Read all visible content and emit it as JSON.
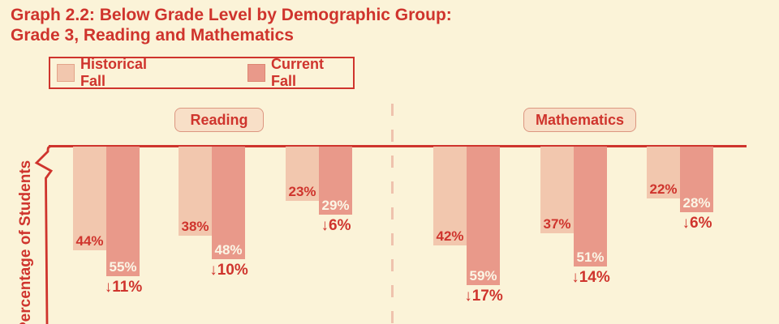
{
  "title": {
    "line1": "Graph 2.2: Below Grade Level by Demographic Group:",
    "line2": "Grade 3, Reading and Mathematics"
  },
  "legend": {
    "items": [
      {
        "label": "Historical Fall",
        "color": "#F2C7AE"
      },
      {
        "label": "Current Fall",
        "color": "#E9998A"
      }
    ]
  },
  "colors": {
    "background": "#FBF3D8",
    "accent_red": "#CF342D",
    "historical_bar": "#F2C7AE",
    "current_bar": "#E9998A",
    "section_box_bg": "#F8DFC7",
    "section_box_border": "#DC9680",
    "dashed_divider": "#EFC2AD",
    "current_label_text": "#FBF6E6"
  },
  "chart_data": {
    "type": "bar",
    "title": "Graph 2.2: Below Grade Level by Demographic Group: Grade 3, Reading and Mathematics",
    "ylabel": "Percentage of Students",
    "unit": "percent",
    "series": [
      "Historical Fall",
      "Current Fall"
    ],
    "orientation": "bars hang downward from x-axis at top",
    "axis_notes": "y-axis on left with break mark near top; dashed vertical divider between subject sections; no tick labels visible",
    "sections": [
      {
        "label": "Reading",
        "groups": [
          {
            "historical": 44,
            "current": 55,
            "change_points": 11,
            "historical_label": "44%",
            "current_label": "55%",
            "change_label": "↓11%"
          },
          {
            "historical": 38,
            "current": 48,
            "change_points": 10,
            "historical_label": "38%",
            "current_label": "48%",
            "change_label": "↓10%"
          },
          {
            "historical": 23,
            "current": 29,
            "change_points": 6,
            "historical_label": "23%",
            "current_label": "29%",
            "change_label": "↓6%"
          }
        ]
      },
      {
        "label": "Mathematics",
        "groups": [
          {
            "historical": 42,
            "current": 59,
            "change_points": 17,
            "historical_label": "42%",
            "current_label": "59%",
            "change_label": "↓17%"
          },
          {
            "historical": 37,
            "current": 51,
            "change_points": 14,
            "historical_label": "37%",
            "current_label": "51%",
            "change_label": "↓14%"
          },
          {
            "historical": 22,
            "current": 28,
            "change_points": 6,
            "historical_label": "22%",
            "current_label": "28%",
            "change_label": "↓6%"
          }
        ]
      }
    ]
  }
}
